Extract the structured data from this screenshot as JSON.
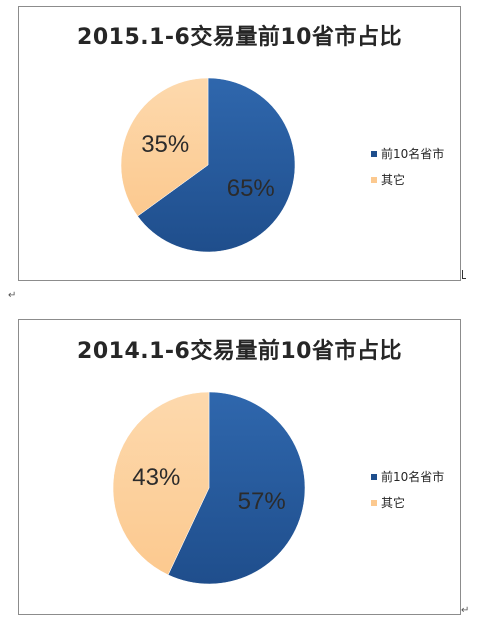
{
  "colors": {
    "series1": "#1f4e8c",
    "series1_light": "#2f67ad",
    "series2": "#fcc98f",
    "series2_light": "#fdd9ad",
    "label": "#2b2b2b"
  },
  "chart_data": [
    {
      "type": "pie",
      "title": "2015.1-6交易量前10省市占比",
      "categories": [
        "前10名省市",
        "其它"
      ],
      "values": [
        65,
        35
      ],
      "data_labels": [
        "65%",
        "35%"
      ],
      "legend_placement": "right"
    },
    {
      "type": "pie",
      "title": "2014.1-6交易量前10省市占比",
      "categories": [
        "前10名省市",
        "其它"
      ],
      "values": [
        57,
        43
      ],
      "data_labels": [
        "57%",
        "43%"
      ],
      "legend_placement": "right"
    }
  ]
}
